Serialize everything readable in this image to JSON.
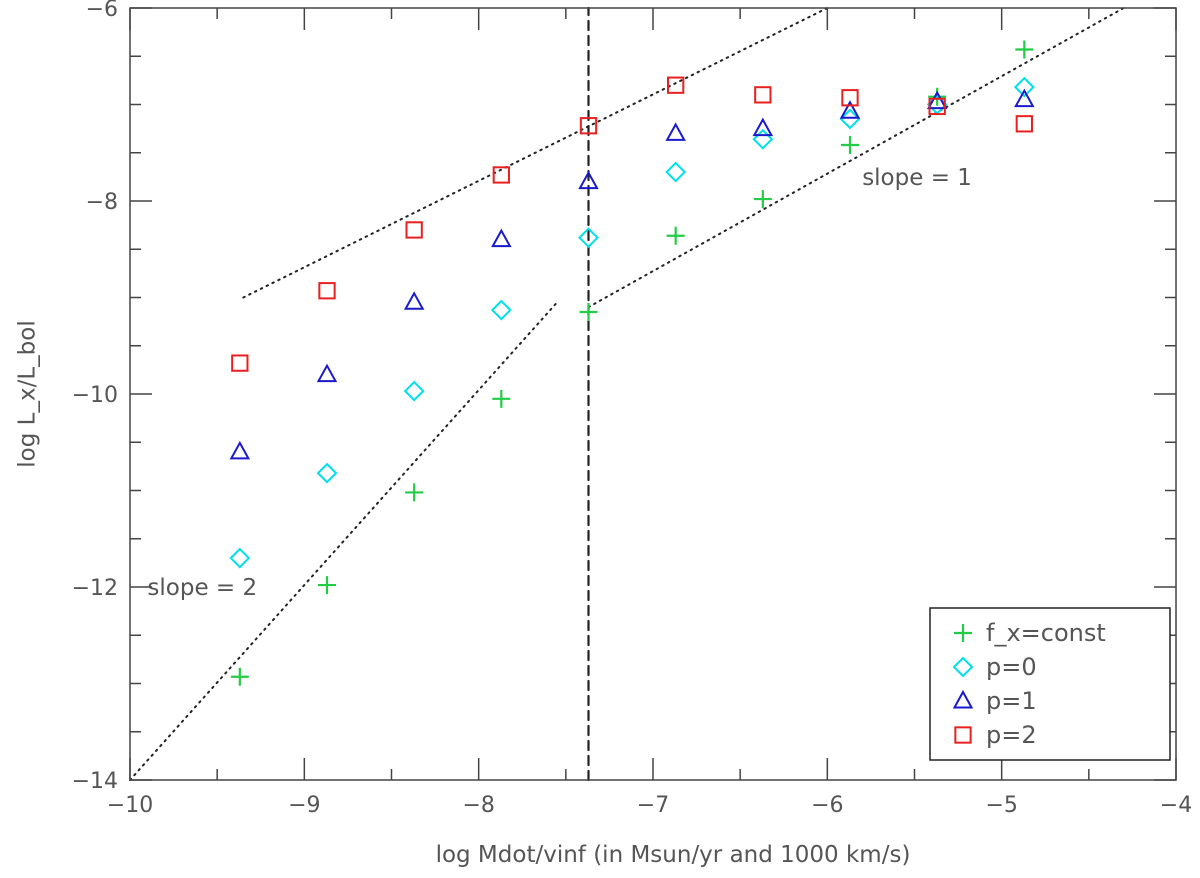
{
  "chart_data": {
    "type": "scatter",
    "xlabel": "log Mdot/vinf (in Msun/yr and 1000 km/s)",
    "ylabel": "log L_x/L_bol",
    "xlim": [
      -10,
      -4
    ],
    "ylim": [
      -14,
      -6
    ],
    "x_ticks": [
      -10,
      -9,
      -8,
      -7,
      -6,
      -5,
      -4
    ],
    "y_ticks": [
      -14,
      -12,
      -10,
      -8,
      -6
    ],
    "x_tick_labels": [
      "−10",
      "−9",
      "−8",
      "−7",
      "−6",
      "−5",
      "−4"
    ],
    "y_tick_labels": [
      "−14",
      "−12",
      "−10",
      "−8",
      "−6"
    ],
    "grid": false,
    "legend_position": "bottom-right",
    "series": [
      {
        "name": "f_x=const",
        "marker": "plus",
        "color": "#22cc44",
        "points": [
          [
            -9.37,
            -12.93
          ],
          [
            -8.87,
            -11.98
          ],
          [
            -8.37,
            -11.02
          ],
          [
            -7.87,
            -10.05
          ],
          [
            -7.37,
            -9.15
          ],
          [
            -6.87,
            -8.36
          ],
          [
            -6.37,
            -7.98
          ],
          [
            -5.87,
            -7.42
          ],
          [
            -5.37,
            -6.92
          ],
          [
            -4.87,
            -6.43
          ]
        ]
      },
      {
        "name": "p=0",
        "marker": "diamond",
        "color": "#00e0e8",
        "points": [
          [
            -9.37,
            -11.7
          ],
          [
            -8.87,
            -10.82
          ],
          [
            -8.37,
            -9.97
          ],
          [
            -7.87,
            -9.13
          ],
          [
            -7.37,
            -8.38
          ],
          [
            -6.87,
            -7.7
          ],
          [
            -6.37,
            -7.36
          ],
          [
            -5.87,
            -7.15
          ],
          [
            -5.37,
            -7.0
          ],
          [
            -4.87,
            -6.82
          ]
        ]
      },
      {
        "name": "p=1",
        "marker": "triangle",
        "color": "#1a1acc",
        "points": [
          [
            -9.37,
            -10.6
          ],
          [
            -8.87,
            -9.8
          ],
          [
            -8.37,
            -9.05
          ],
          [
            -7.87,
            -8.4
          ],
          [
            -7.37,
            -7.8
          ],
          [
            -6.87,
            -7.3
          ],
          [
            -6.37,
            -7.25
          ],
          [
            -5.87,
            -7.07
          ],
          [
            -5.37,
            -6.97
          ],
          [
            -4.87,
            -6.95
          ]
        ]
      },
      {
        "name": "p=2",
        "marker": "square",
        "color": "#e82020",
        "points": [
          [
            -9.37,
            -9.68
          ],
          [
            -8.87,
            -8.93
          ],
          [
            -8.37,
            -8.3
          ],
          [
            -7.87,
            -7.73
          ],
          [
            -7.37,
            -7.22
          ],
          [
            -6.87,
            -6.8
          ],
          [
            -6.37,
            -6.9
          ],
          [
            -5.87,
            -6.93
          ],
          [
            -5.37,
            -7.02
          ],
          [
            -4.87,
            -7.2
          ]
        ]
      }
    ],
    "reference_lines": [
      {
        "style": "dotted",
        "from": [
          -9.35,
          -9.0
        ],
        "to": [
          -6.0,
          -6.0
        ]
      },
      {
        "style": "dotted",
        "from": [
          -10.0,
          -14.0
        ],
        "to": [
          -7.55,
          -9.05
        ]
      },
      {
        "style": "dotted",
        "from": [
          -7.37,
          -9.1
        ],
        "to": [
          -4.3,
          -6.0
        ]
      },
      {
        "style": "dashed",
        "from": [
          -7.37,
          -14.0
        ],
        "to": [
          -7.37,
          -6.0
        ]
      }
    ],
    "annotations": [
      {
        "text": "slope = 2",
        "x": -9.9,
        "y": -12.0
      },
      {
        "text": "slope = 1",
        "x": -5.8,
        "y": -7.75
      }
    ]
  }
}
